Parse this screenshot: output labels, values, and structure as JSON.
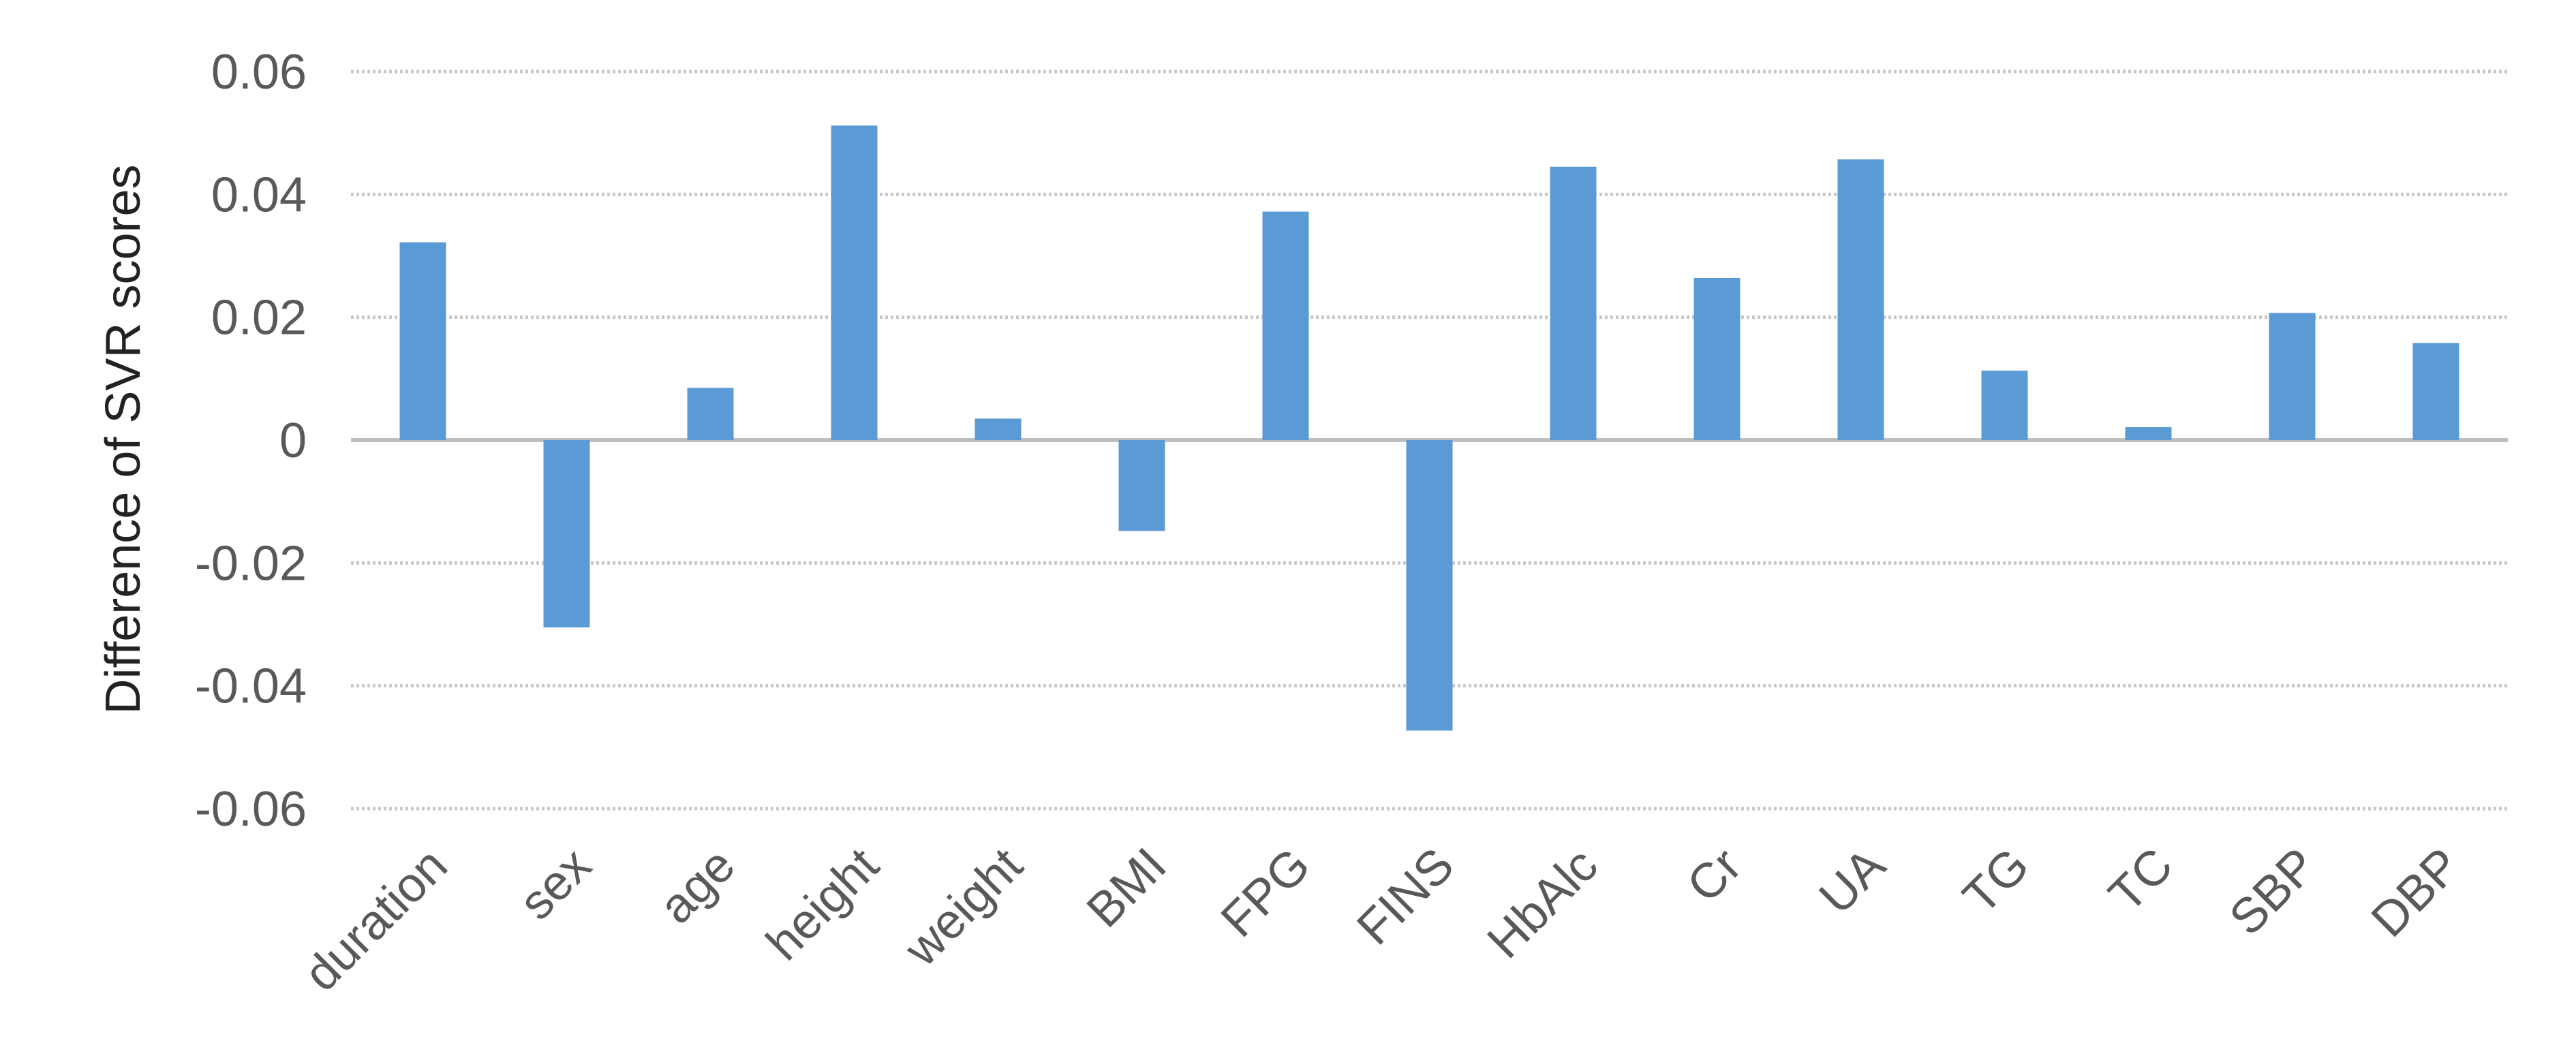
{
  "chart_data": {
    "type": "bar",
    "categories": [
      "duration",
      "sex",
      "age",
      "height",
      "weight",
      "BMI",
      "FPG",
      "FINS",
      "HbAlc",
      "Cr",
      "UA",
      "TG",
      "TC",
      "SBP",
      "DBP"
    ],
    "values": [
      0.0322,
      -0.0305,
      0.0085,
      0.0512,
      0.0035,
      -0.0148,
      0.0372,
      -0.0473,
      0.0445,
      0.0264,
      0.0457,
      0.0113,
      0.0021,
      0.0207,
      0.0158
    ],
    "title": "",
    "xlabel": "",
    "ylabel": "Difference of SVR scores",
    "ylim": [
      -0.06,
      0.06
    ],
    "yticks": [
      -0.06,
      -0.04,
      -0.02,
      0,
      0.02,
      0.04,
      0.06
    ],
    "ytick_labels": [
      "-0.06",
      "-0.04",
      "-0.02",
      "0",
      "0.02",
      "0.04",
      "0.06"
    ],
    "grid": true,
    "legend": "none",
    "bar_color": "#5b9bd5"
  }
}
